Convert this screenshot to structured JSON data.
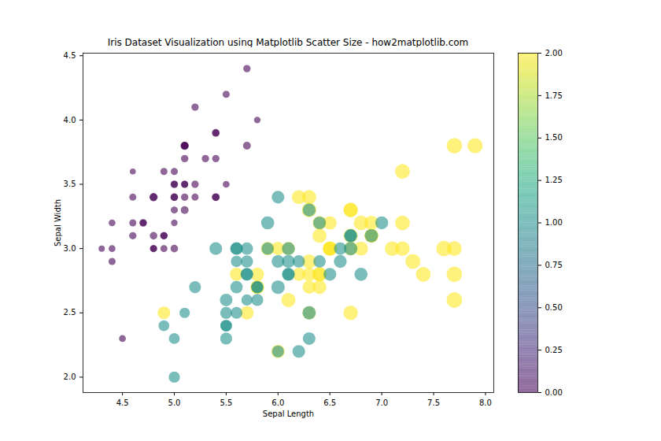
{
  "chart_data": {
    "type": "scatter",
    "title": "Iris Dataset Visualization using Matplotlib Scatter Size - how2matplotlib.com",
    "x_label": "Sepal Length",
    "y_label": "Sepal Width",
    "x": [
      5.1,
      4.9,
      4.7,
      4.6,
      5.0,
      5.4,
      4.6,
      5.0,
      4.4,
      4.9,
      5.4,
      4.8,
      4.8,
      4.3,
      5.8,
      5.7,
      5.4,
      5.1,
      5.7,
      5.1,
      5.4,
      5.1,
      4.6,
      5.1,
      4.8,
      5.0,
      5.0,
      5.2,
      5.2,
      4.7,
      4.8,
      5.4,
      5.2,
      5.5,
      4.9,
      5.0,
      5.5,
      4.9,
      4.4,
      5.1,
      5.0,
      4.5,
      4.4,
      5.0,
      5.1,
      4.8,
      5.1,
      4.6,
      5.3,
      5.0,
      7.0,
      6.4,
      6.9,
      5.5,
      6.5,
      5.7,
      6.3,
      4.9,
      6.6,
      5.2,
      5.0,
      5.9,
      6.0,
      6.1,
      5.6,
      6.7,
      5.6,
      5.8,
      6.2,
      5.6,
      5.9,
      6.1,
      6.3,
      6.1,
      6.4,
      6.6,
      6.8,
      6.7,
      6.0,
      5.7,
      5.5,
      5.5,
      5.8,
      6.0,
      5.4,
      6.0,
      6.7,
      6.3,
      5.6,
      5.5,
      5.5,
      6.1,
      5.8,
      5.0,
      5.6,
      5.7,
      5.7,
      6.2,
      5.1,
      5.7,
      6.3,
      5.8,
      7.1,
      6.3,
      6.5,
      7.6,
      4.9,
      7.3,
      6.7,
      7.2,
      6.5,
      6.4,
      6.8,
      5.7,
      5.8,
      6.4,
      6.5,
      7.7,
      7.7,
      6.0,
      6.9,
      5.6,
      7.7,
      6.3,
      6.7,
      7.2,
      6.2,
      6.1,
      6.4,
      7.2,
      7.4,
      7.9,
      6.4,
      6.3,
      6.1,
      7.7,
      6.3,
      6.4,
      6.0,
      6.9,
      6.7,
      6.9,
      5.8,
      6.8,
      6.7,
      6.7,
      6.3,
      6.5,
      6.2,
      5.9
    ],
    "y": [
      3.5,
      3.0,
      3.2,
      3.1,
      3.6,
      3.9,
      3.4,
      3.4,
      2.9,
      3.1,
      3.7,
      3.4,
      3.0,
      3.0,
      4.0,
      4.4,
      3.9,
      3.5,
      3.8,
      3.8,
      3.4,
      3.7,
      3.6,
      3.3,
      3.4,
      3.0,
      3.4,
      3.5,
      3.4,
      3.2,
      3.1,
      3.4,
      4.1,
      4.2,
      3.1,
      3.2,
      3.5,
      3.6,
      3.0,
      3.4,
      3.5,
      2.3,
      3.2,
      3.5,
      3.8,
      3.0,
      3.8,
      3.2,
      3.7,
      3.3,
      3.2,
      3.2,
      3.1,
      2.3,
      2.8,
      2.8,
      3.3,
      2.4,
      2.9,
      2.7,
      2.0,
      3.0,
      2.2,
      2.9,
      2.9,
      3.1,
      3.0,
      2.7,
      2.2,
      2.5,
      3.2,
      2.8,
      2.5,
      2.8,
      2.9,
      3.0,
      2.8,
      3.0,
      2.9,
      2.6,
      2.4,
      2.4,
      2.7,
      2.7,
      3.0,
      3.4,
      3.1,
      2.3,
      3.0,
      2.5,
      2.6,
      3.0,
      2.6,
      2.3,
      2.7,
      3.0,
      2.9,
      2.9,
      2.5,
      2.8,
      3.3,
      2.7,
      3.0,
      2.9,
      3.0,
      3.0,
      2.5,
      2.9,
      2.5,
      3.6,
      3.2,
      2.7,
      3.0,
      2.5,
      2.8,
      3.2,
      3.0,
      3.8,
      2.6,
      2.2,
      3.2,
      2.8,
      2.8,
      2.7,
      3.3,
      3.2,
      2.8,
      3.0,
      2.8,
      3.0,
      2.8,
      3.8,
      2.8,
      2.8,
      2.6,
      3.0,
      3.4,
      3.1,
      3.0,
      3.1,
      3.1,
      3.1,
      2.7,
      3.2,
      3.3,
      3.0,
      2.5,
      3.0,
      3.4,
      3.0
    ],
    "size": [
      1.4,
      1.4,
      1.3,
      1.5,
      1.4,
      1.7,
      1.4,
      1.5,
      1.4,
      1.5,
      1.5,
      1.6,
      1.4,
      1.1,
      1.2,
      1.5,
      1.3,
      1.4,
      1.7,
      1.5,
      1.7,
      1.5,
      1.0,
      1.7,
      1.9,
      1.6,
      1.6,
      1.5,
      1.4,
      1.6,
      1.6,
      1.5,
      1.5,
      1.4,
      1.5,
      1.2,
      1.3,
      1.4,
      1.3,
      1.5,
      1.3,
      1.3,
      1.3,
      1.6,
      1.9,
      1.4,
      1.6,
      1.4,
      1.5,
      1.4,
      4.7,
      4.5,
      4.9,
      4.0,
      4.6,
      4.5,
      4.7,
      3.3,
      4.6,
      3.9,
      3.5,
      4.2,
      4.0,
      4.7,
      3.6,
      4.4,
      4.5,
      4.1,
      4.5,
      3.9,
      4.8,
      4.0,
      4.9,
      4.7,
      4.3,
      4.4,
      4.8,
      5.0,
      4.5,
      3.5,
      3.8,
      3.7,
      3.9,
      5.1,
      4.5,
      4.5,
      4.7,
      4.4,
      4.1,
      4.0,
      4.4,
      4.6,
      4.0,
      3.3,
      4.2,
      4.2,
      4.2,
      4.3,
      3.0,
      4.1,
      6.0,
      5.1,
      5.9,
      5.6,
      5.8,
      6.6,
      4.5,
      6.3,
      5.8,
      6.1,
      5.1,
      5.3,
      5.5,
      5.0,
      5.1,
      5.3,
      5.5,
      6.7,
      6.9,
      5.0,
      5.7,
      4.9,
      6.7,
      4.9,
      5.7,
      6.0,
      4.8,
      4.9,
      5.6,
      5.8,
      6.1,
      6.4,
      5.6,
      5.1,
      5.6,
      6.1,
      5.6,
      5.5,
      4.8,
      5.4,
      5.6,
      5.1,
      5.1,
      5.9,
      5.7,
      5.2,
      5.0,
      5.2,
      5.4,
      5.1
    ],
    "color_values": [
      0,
      0,
      0,
      0,
      0,
      0,
      0,
      0,
      0,
      0,
      0,
      0,
      0,
      0,
      0,
      0,
      0,
      0,
      0,
      0,
      0,
      0,
      0,
      0,
      0,
      0,
      0,
      0,
      0,
      0,
      0,
      0,
      0,
      0,
      0,
      0,
      0,
      0,
      0,
      0,
      0,
      0,
      0,
      0,
      0,
      0,
      0,
      0,
      0,
      0,
      1,
      1,
      1,
      1,
      1,
      1,
      1,
      1,
      1,
      1,
      1,
      1,
      1,
      1,
      1,
      1,
      1,
      1,
      1,
      1,
      1,
      1,
      1,
      1,
      1,
      1,
      1,
      1,
      1,
      1,
      1,
      1,
      1,
      1,
      1,
      1,
      1,
      1,
      1,
      1,
      1,
      1,
      1,
      1,
      1,
      1,
      1,
      1,
      1,
      1,
      2,
      2,
      2,
      2,
      2,
      2,
      2,
      2,
      2,
      2,
      2,
      2,
      2,
      2,
      2,
      2,
      2,
      2,
      2,
      2,
      2,
      2,
      2,
      2,
      2,
      2,
      2,
      2,
      2,
      2,
      2,
      2,
      2,
      2,
      2,
      2,
      2,
      2,
      2,
      2,
      2,
      2,
      2,
      2,
      2,
      2,
      2,
      2,
      2,
      2
    ],
    "xlim": [
      4.12,
      8.08
    ],
    "ylim": [
      1.88,
      4.52
    ],
    "xticks": [
      4.5,
      {
        "value": 5,
        "label": "5.0"
      },
      5.5,
      {
        "value": 6,
        "label": "6.0"
      },
      6.5,
      {
        "value": 7,
        "label": "7.0"
      },
      7.5,
      {
        "value": 8,
        "label": "8.0"
      }
    ],
    "yticks": [
      {
        "value": 2,
        "label": "2.0"
      },
      2.5,
      {
        "value": 3,
        "label": "3.0"
      },
      3.5,
      {
        "value": 4,
        "label": "4.0"
      },
      4.5
    ],
    "colorbar_range": [
      0,
      2
    ],
    "colorbar_ticks": [
      {
        "value": 0,
        "label": "0.00"
      },
      {
        "value": 0.25,
        "label": "0.25"
      },
      {
        "value": 0.5,
        "label": "0.50"
      },
      {
        "value": 0.75,
        "label": "0.75"
      },
      {
        "value": 1,
        "label": "1.00"
      },
      {
        "value": 1.25,
        "label": "1.25"
      },
      {
        "value": 1.5,
        "label": "1.50"
      },
      {
        "value": 1.75,
        "label": "1.75"
      },
      {
        "value": 2,
        "label": "2.00"
      }
    ],
    "grid": false
  }
}
